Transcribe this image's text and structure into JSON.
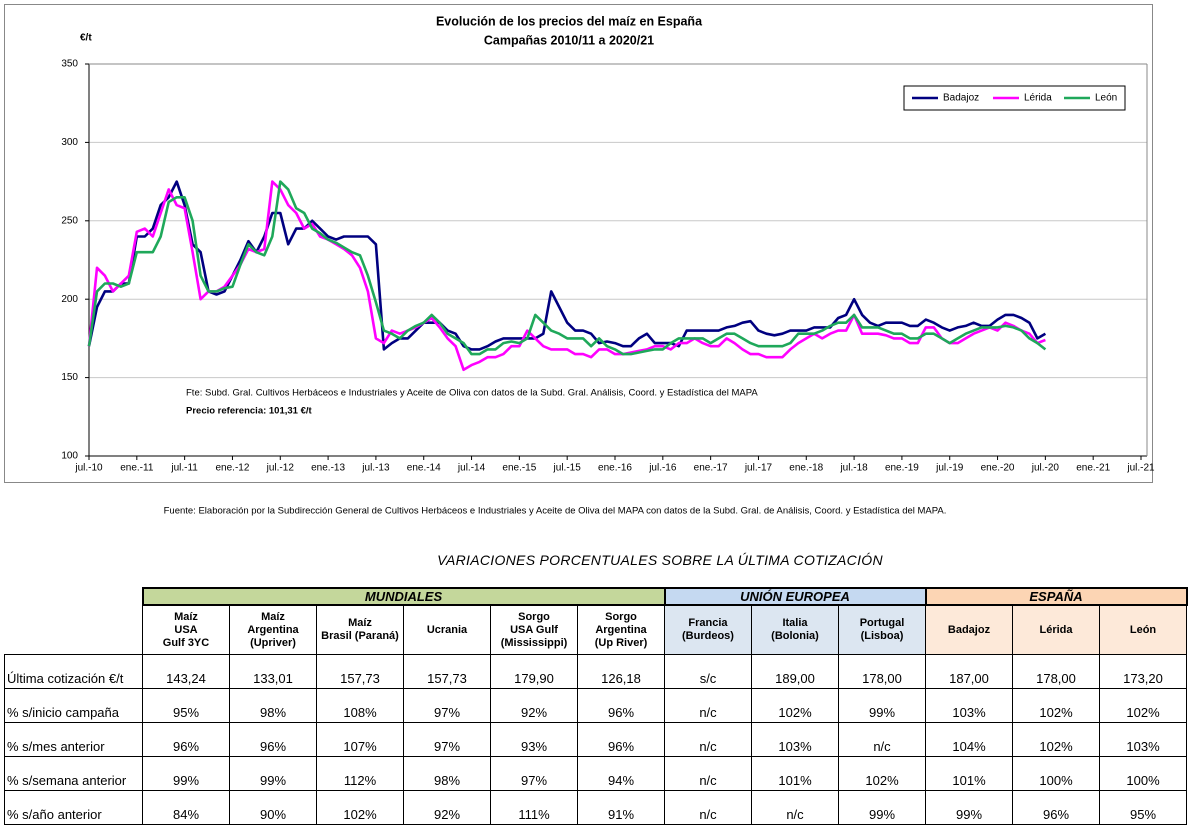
{
  "chart_data": {
    "type": "line",
    "title": "Evolución de los precios del maíz en España",
    "subtitle": "Campañas 2010/11 a 2020/21",
    "y_label": "€/t",
    "annotations": [
      "Fte: Subd. Gral. Cultivos Herbáceos e Industriales y Aceite de Oliva con datos de la Subd. Gral. Análisis, Coord. y Estadística del MAPA",
      "Precio referencia: 101,31 €/t"
    ],
    "source": "Fuente: Elaboración por la Subdirección General de Cultivos Herbáceos e Industriales y Aceite de Oliva del MAPA con datos de la Subd. Gral. de Análisis, Coord. y Estadística del MAPA.",
    "ylim": [
      100,
      350
    ],
    "yticks": [
      100,
      150,
      200,
      250,
      300,
      350
    ],
    "grid": true,
    "legend": "top-right",
    "xlim": [
      "2010-07",
      "2021-07"
    ],
    "xticks": [
      {
        "value": "2010-07",
        "label": "jul.-10"
      },
      {
        "value": "2011-01",
        "label": "ene.-11"
      },
      {
        "value": "2011-07",
        "label": "jul.-11"
      },
      {
        "value": "2012-01",
        "label": "ene.-12"
      },
      {
        "value": "2012-07",
        "label": "jul.-12"
      },
      {
        "value": "2013-01",
        "label": "ene.-13"
      },
      {
        "value": "2013-07",
        "label": "jul.-13"
      },
      {
        "value": "2014-01",
        "label": "ene.-14"
      },
      {
        "value": "2014-07",
        "label": "jul.-14"
      },
      {
        "value": "2015-01",
        "label": "ene.-15"
      },
      {
        "value": "2015-07",
        "label": "jul.-15"
      },
      {
        "value": "2016-01",
        "label": "ene.-16"
      },
      {
        "value": "2016-07",
        "label": "jul.-16"
      },
      {
        "value": "2017-01",
        "label": "ene.-17"
      },
      {
        "value": "2017-07",
        "label": "jul.-17"
      },
      {
        "value": "2018-01",
        "label": "ene.-18"
      },
      {
        "value": "2018-07",
        "label": "jul.-18"
      },
      {
        "value": "2019-01",
        "label": "ene.-19"
      },
      {
        "value": "2019-07",
        "label": "jul.-19"
      },
      {
        "value": "2020-01",
        "label": "ene.-20"
      },
      {
        "value": "2020-07",
        "label": "jul.-20"
      },
      {
        "value": "2021-01",
        "label": "ene.-21"
      },
      {
        "value": "2021-07",
        "label": "jul.-21"
      }
    ],
    "x": [
      "2010-07",
      "2010-08",
      "2010-09",
      "2010-10",
      "2010-11",
      "2010-12",
      "2011-01",
      "2011-02",
      "2011-03",
      "2011-04",
      "2011-05",
      "2011-06",
      "2011-07",
      "2011-08",
      "2011-09",
      "2011-10",
      "2011-11",
      "2011-12",
      "2012-01",
      "2012-02",
      "2012-03",
      "2012-04",
      "2012-05",
      "2012-06",
      "2012-07",
      "2012-08",
      "2012-09",
      "2012-10",
      "2012-11",
      "2012-12",
      "2013-01",
      "2013-02",
      "2013-03",
      "2013-04",
      "2013-05",
      "2013-06",
      "2013-07",
      "2013-08",
      "2013-09",
      "2013-10",
      "2013-11",
      "2013-12",
      "2014-01",
      "2014-02",
      "2014-03",
      "2014-04",
      "2014-05",
      "2014-06",
      "2014-07",
      "2014-08",
      "2014-09",
      "2014-10",
      "2014-11",
      "2014-12",
      "2015-01",
      "2015-02",
      "2015-03",
      "2015-04",
      "2015-05",
      "2015-06",
      "2015-07",
      "2015-08",
      "2015-09",
      "2015-10",
      "2015-11",
      "2015-12",
      "2016-01",
      "2016-02",
      "2016-03",
      "2016-04",
      "2016-05",
      "2016-06",
      "2016-07",
      "2016-08",
      "2016-09",
      "2016-10",
      "2016-11",
      "2016-12",
      "2017-01",
      "2017-02",
      "2017-03",
      "2017-04",
      "2017-05",
      "2017-06",
      "2017-07",
      "2017-08",
      "2017-09",
      "2017-10",
      "2017-11",
      "2017-12",
      "2018-01",
      "2018-02",
      "2018-03",
      "2018-04",
      "2018-05",
      "2018-06",
      "2018-07",
      "2018-08",
      "2018-09",
      "2018-10",
      "2018-11",
      "2018-12",
      "2019-01",
      "2019-02",
      "2019-03",
      "2019-04",
      "2019-05",
      "2019-06",
      "2019-07",
      "2019-08",
      "2019-09",
      "2019-10",
      "2019-11",
      "2019-12",
      "2020-01",
      "2020-02",
      "2020-03",
      "2020-04",
      "2020-05",
      "2020-06",
      "2020-07"
    ],
    "series": [
      {
        "name": "Badajoz",
        "color": "#000080",
        "values": [
          170,
          195,
          205,
          205,
          210,
          210,
          240,
          240,
          245,
          260,
          265,
          275,
          260,
          235,
          230,
          205,
          203,
          205,
          215,
          225,
          237,
          230,
          240,
          255,
          255,
          235,
          245,
          245,
          250,
          245,
          240,
          238,
          240,
          240,
          240,
          240,
          235,
          168,
          172,
          175,
          175,
          180,
          185,
          185,
          185,
          180,
          178,
          170,
          168,
          168,
          170,
          173,
          175,
          175,
          175,
          175,
          175,
          178,
          205,
          195,
          185,
          180,
          180,
          178,
          172,
          173,
          172,
          170,
          170,
          175,
          178,
          172,
          172,
          172,
          170,
          180,
          180,
          180,
          180,
          180,
          182,
          183,
          185,
          186,
          180,
          178,
          177,
          178,
          180,
          180,
          180,
          182,
          182,
          182,
          188,
          190,
          200,
          190,
          185,
          183,
          185,
          185,
          185,
          183,
          183,
          187,
          185,
          182,
          180,
          182,
          183,
          185,
          183,
          183,
          187,
          190,
          190,
          188,
          185,
          175,
          178
        ]
      },
      {
        "name": "Lérida",
        "color": "#ff00ff",
        "values": [
          170,
          220,
          215,
          205,
          210,
          215,
          243,
          245,
          240,
          255,
          270,
          260,
          258,
          230,
          200,
          205,
          205,
          208,
          215,
          222,
          232,
          230,
          232,
          275,
          270,
          260,
          255,
          245,
          248,
          240,
          238,
          235,
          232,
          228,
          220,
          205,
          175,
          172,
          180,
          178,
          180,
          182,
          185,
          188,
          182,
          175,
          170,
          155,
          158,
          160,
          163,
          163,
          165,
          170,
          170,
          180,
          175,
          170,
          168,
          168,
          168,
          165,
          165,
          163,
          168,
          168,
          165,
          165,
          166,
          167,
          168,
          170,
          170,
          168,
          172,
          172,
          175,
          172,
          170,
          170,
          175,
          172,
          168,
          165,
          165,
          163,
          163,
          163,
          168,
          172,
          175,
          178,
          175,
          178,
          180,
          180,
          190,
          178,
          178,
          178,
          177,
          175,
          175,
          172,
          172,
          182,
          182,
          175,
          172,
          172,
          175,
          178,
          180,
          182,
          180,
          185,
          183,
          180,
          178,
          172,
          174
        ]
      },
      {
        "name": "León",
        "color": "#1fa85a",
        "values": [
          170,
          205,
          210,
          210,
          208,
          210,
          230,
          230,
          230,
          240,
          262,
          265,
          265,
          250,
          215,
          205,
          205,
          207,
          208,
          222,
          235,
          230,
          228,
          240,
          275,
          270,
          258,
          255,
          245,
          242,
          238,
          236,
          233,
          230,
          228,
          215,
          198,
          180,
          178,
          175,
          180,
          183,
          185,
          190,
          185,
          178,
          175,
          172,
          165,
          165,
          168,
          168,
          172,
          173,
          172,
          175,
          190,
          185,
          180,
          178,
          175,
          175,
          175,
          170,
          175,
          170,
          168,
          165,
          165,
          166,
          167,
          168,
          168,
          172,
          175,
          175,
          175,
          175,
          172,
          175,
          178,
          178,
          175,
          172,
          170,
          170,
          170,
          170,
          172,
          178,
          178,
          178,
          180,
          183,
          185,
          185,
          190,
          182,
          182,
          182,
          180,
          178,
          178,
          175,
          175,
          178,
          178,
          175,
          172,
          175,
          178,
          180,
          182,
          182,
          182,
          183,
          182,
          180,
          175,
          172,
          168
        ]
      }
    ]
  },
  "table": {
    "title": "VARIACIONES PORCENTUALES SOBRE LA ÚLTIMA COTIZACIÓN",
    "groups": [
      {
        "label": "MUNDIALES",
        "columns": [
          [
            "Maíz",
            "USA",
            "Gulf  3YC"
          ],
          [
            "Maíz",
            "Argentina",
            "(Upriver)"
          ],
          [
            "Maíz",
            "Brasil (Paraná)"
          ],
          [
            "Ucrania"
          ],
          [
            "Sorgo",
            "USA Gulf",
            "(Mississippi)"
          ],
          [
            "Sorgo",
            "Argentina",
            "(Up River)"
          ]
        ]
      },
      {
        "label": "UNIÓN EUROPEA",
        "columns": [
          [
            "Francia",
            "(Burdeos)"
          ],
          [
            "Italia",
            "(Bolonia)"
          ],
          [
            "Portugal",
            "(Lisboa)"
          ]
        ]
      },
      {
        "label": "ESPAÑA",
        "columns": [
          [
            "Badajoz"
          ],
          [
            "Lérida"
          ],
          [
            "León"
          ]
        ]
      }
    ],
    "rows": [
      {
        "label": "Última cotización €/t",
        "cells": [
          "143,24",
          "133,01",
          "157,73",
          "157,73",
          "179,90",
          "126,18",
          "s/c",
          "189,00",
          "178,00",
          "187,00",
          "178,00",
          "173,20"
        ]
      },
      {
        "label": "% s/inicio campaña",
        "cells": [
          "95%",
          "98%",
          "108%",
          "97%",
          "92%",
          "96%",
          "n/c",
          "102%",
          "99%",
          "103%",
          "102%",
          "102%"
        ]
      },
      {
        "label": "% s/mes anterior",
        "cells": [
          "96%",
          "96%",
          "107%",
          "97%",
          "93%",
          "96%",
          "n/c",
          "103%",
          "n/c",
          "104%",
          "102%",
          "103%"
        ]
      },
      {
        "label": "% s/semana anterior",
        "cells": [
          "99%",
          "99%",
          "112%",
          "98%",
          "97%",
          "94%",
          "n/c",
          "101%",
          "102%",
          "101%",
          "100%",
          "100%"
        ]
      },
      {
        "label": "% s/año anterior",
        "cells": [
          "84%",
          "90%",
          "102%",
          "92%",
          "111%",
          "91%",
          "n/c",
          "n/c",
          "99%",
          "99%",
          "96%",
          "95%"
        ]
      }
    ]
  }
}
